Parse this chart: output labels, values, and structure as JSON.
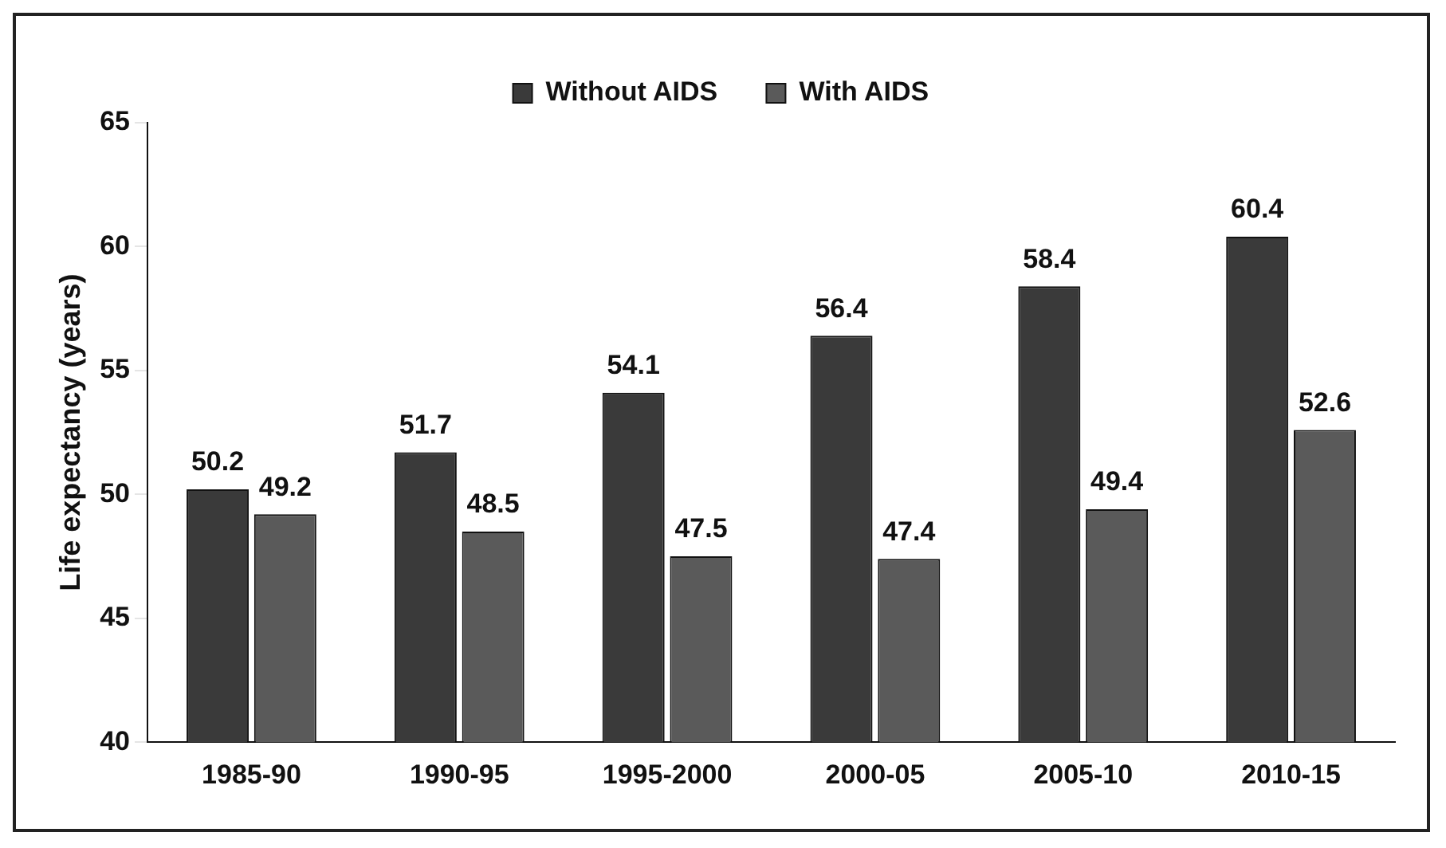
{
  "chart_data": {
    "type": "bar",
    "ylabel": "Life expectancy (years)",
    "categories": [
      "1985-90",
      "1990-95",
      "1995-2000",
      "2000-05",
      "2005-10",
      "2010-15"
    ],
    "series": [
      {
        "name": "Without AIDS",
        "color": "#3a3a3a",
        "values": [
          50.2,
          51.7,
          54.1,
          56.4,
          58.4,
          60.4
        ]
      },
      {
        "name": "With AIDS",
        "color": "#5a5a5a",
        "values": [
          49.2,
          48.5,
          47.5,
          47.4,
          49.4,
          52.6
        ]
      }
    ],
    "ylim": [
      40,
      65
    ],
    "yticks": [
      40,
      45,
      50,
      55,
      60,
      65
    ],
    "grid": false,
    "legend": "top",
    "data_labels": true
  }
}
